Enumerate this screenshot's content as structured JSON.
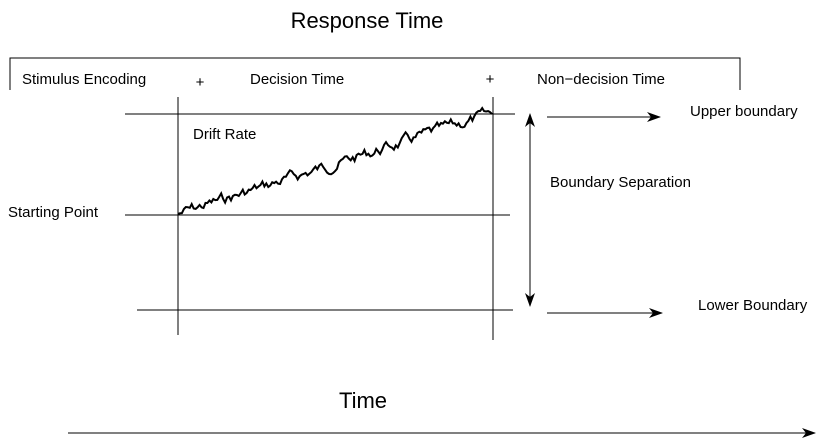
{
  "header": {
    "title": "Response Time"
  },
  "phases": [
    "Stimulus Encoding",
    "Decision Time",
    "Non−decision Time"
  ],
  "separators": [
    "+",
    "+"
  ],
  "labels": {
    "drift_rate": "Drift Rate",
    "upper_boundary": "Upper boundary",
    "boundary_separation": "Boundary Separation",
    "starting_point": "Starting Point",
    "lower_boundary": "Lower Boundary"
  },
  "axis": {
    "label": "Time"
  }
}
